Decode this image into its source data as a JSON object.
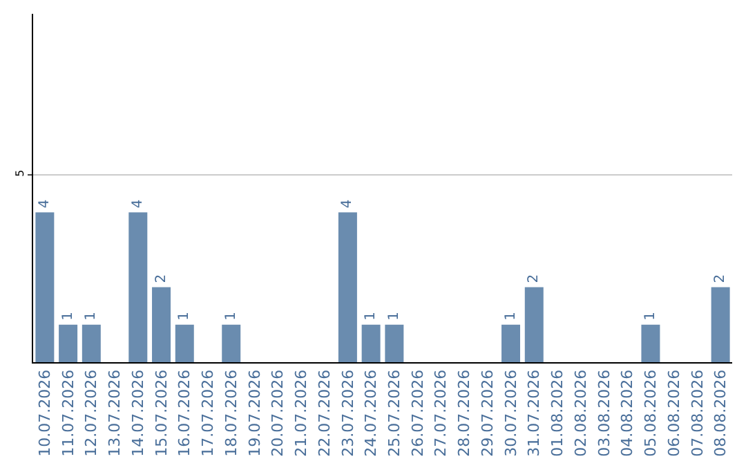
{
  "chart_data": {
    "type": "bar",
    "categories": [
      "10.07.2026",
      "11.07.2026",
      "12.07.2026",
      "13.07.2026",
      "14.07.2026",
      "15.07.2026",
      "16.07.2026",
      "17.07.2026",
      "18.07.2026",
      "19.07.2026",
      "20.07.2026",
      "21.07.2026",
      "22.07.2026",
      "23.07.2026",
      "24.07.2026",
      "25.07.2026",
      "26.07.2026",
      "27.07.2026",
      "28.07.2026",
      "29.07.2026",
      "30.07.2026",
      "31.07.2026",
      "01.08.2026",
      "02.08.2026",
      "03.08.2026",
      "04.08.2026",
      "05.08.2026",
      "06.08.2026",
      "07.08.2026",
      "08.08.2026"
    ],
    "values": [
      4,
      1,
      1,
      0,
      4,
      2,
      1,
      0,
      1,
      0,
      0,
      0,
      0,
      4,
      1,
      1,
      0,
      0,
      0,
      0,
      1,
      2,
      0,
      0,
      0,
      0,
      1,
      0,
      0,
      2
    ],
    "value_labels": [
      "4",
      "1",
      "1",
      null,
      "4",
      "2",
      "1",
      null,
      "1",
      null,
      null,
      null,
      null,
      "4",
      "1",
      "1",
      null,
      null,
      null,
      null,
      "1",
      "2",
      null,
      null,
      null,
      null,
      "1",
      null,
      null,
      "2"
    ],
    "color": "#6a8caf",
    "ylim": [
      0,
      9.3
    ],
    "yticks": [
      5
    ],
    "grid": "y",
    "legend": false
  }
}
